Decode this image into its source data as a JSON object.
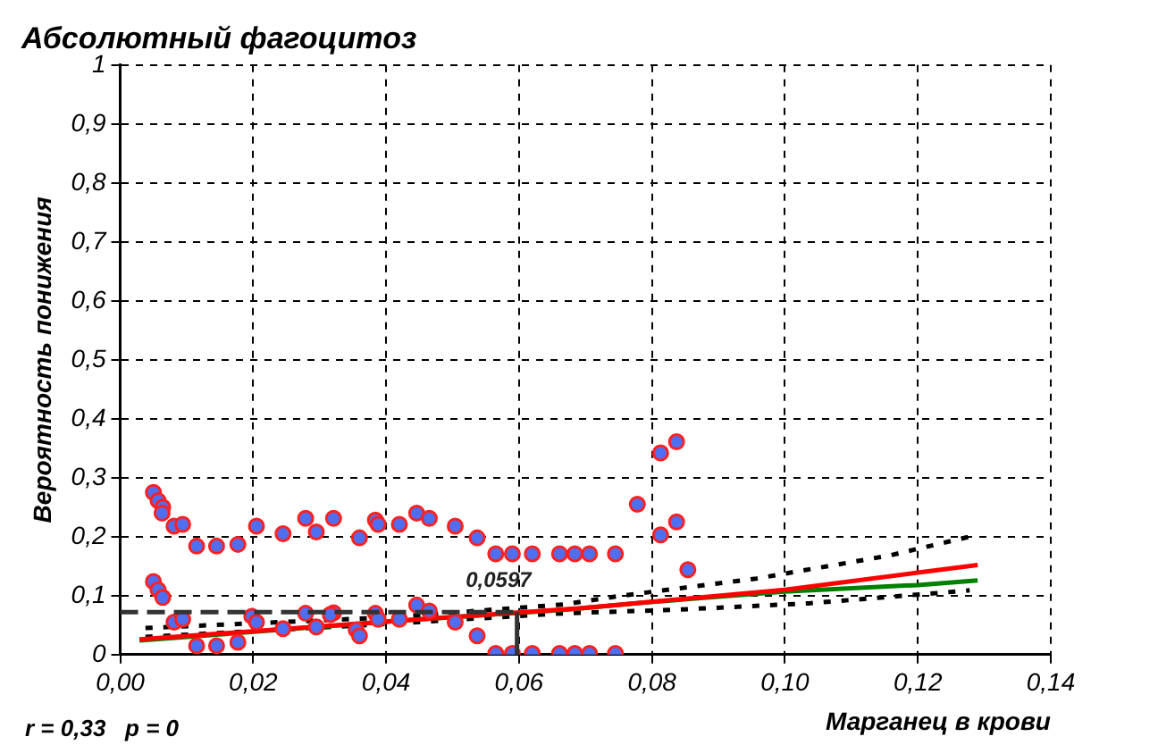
{
  "chart_data": {
    "type": "scatter",
    "title": "Абсолютный фагоцитоз",
    "xlabel": "Марганец в крови",
    "ylabel": "Вероятность понижения",
    "annotations": [
      "r = 0,33   p = 0"
    ],
    "xlim": [
      0,
      0.14
    ],
    "xticks": [
      {
        "value": 0,
        "label": "0,00"
      },
      {
        "value": 0.02,
        "label": "0,02"
      },
      {
        "value": 0.04,
        "label": "0,04"
      },
      {
        "value": 0.06,
        "label": "0,06"
      },
      {
        "value": 0.08,
        "label": "0,08"
      },
      {
        "value": 0.1,
        "label": "0,10"
      },
      {
        "value": 0.12,
        "label": "0,12"
      },
      {
        "value": 0.14,
        "label": "0,14"
      }
    ],
    "ylim": [
      0,
      1
    ],
    "yticks": [
      {
        "value": 1,
        "label": "1"
      },
      {
        "value": 0.9,
        "label": "0,9"
      },
      {
        "value": 0.8,
        "label": "0,8"
      },
      {
        "value": 0.7,
        "label": "0,7"
      },
      {
        "value": 0.6,
        "label": "0,6"
      },
      {
        "value": 0.5,
        "label": "0,5"
      },
      {
        "value": 0.4,
        "label": "0,4"
      },
      {
        "value": 0.3,
        "label": "0,3"
      },
      {
        "value": 0.2,
        "label": "0,2"
      },
      {
        "value": 0.1,
        "label": "0,1"
      },
      0
    ],
    "grid": true,
    "legend": false,
    "ref_lines": [
      {
        "axis": "y",
        "value": 0.072,
        "label": null,
        "color": "#333333",
        "line_style": "dashed"
      },
      {
        "axis": "x",
        "value": 0.0597,
        "label": "0,0597",
        "color": "#333333",
        "line_style": "solid"
      }
    ],
    "series": [
      {
        "type": "scatter",
        "color": "#4f6ef0",
        "marker": "circle",
        "x": [
          0.005,
          0.0057,
          0.0064,
          0.0063,
          0.0081,
          0.0094,
          0.0115,
          0.0145,
          0.0177,
          0.0205,
          0.0245,
          0.0279,
          0.0295,
          0.0321,
          0.036,
          0.0384,
          0.0388,
          0.042,
          0.0446,
          0.0465,
          0.0504,
          0.0537,
          0.0565,
          0.059,
          0.062,
          0.0661,
          0.0684,
          0.0706,
          0.0745,
          0.0778,
          0.0813,
          0.0837,
          0.0813,
          0.0837,
          0.0854,
          0.005,
          0.0057,
          0.0064,
          0.0081,
          0.0094,
          0.0115,
          0.0145,
          0.0177,
          0.0198,
          0.0205,
          0.0245,
          0.0279,
          0.0295,
          0.0321,
          0.0316,
          0.0355,
          0.036,
          0.0384,
          0.0388,
          0.042,
          0.0446,
          0.0465,
          0.0504,
          0.0537,
          0.0565,
          0.059,
          0.062,
          0.0661,
          0.0684,
          0.0706,
          0.0745
        ],
        "values": [
          0.275,
          0.261,
          0.25,
          0.24,
          0.218,
          0.221,
          0.184,
          0.184,
          0.187,
          0.218,
          0.205,
          0.231,
          0.208,
          0.231,
          0.198,
          0.228,
          0.221,
          0.221,
          0.24,
          0.231,
          0.218,
          0.198,
          0.171,
          0.171,
          0.171,
          0.171,
          0.171,
          0.171,
          0.171,
          0.255,
          0.342,
          0.361,
          0.203,
          0.225,
          0.144,
          0.124,
          0.11,
          0.097,
          0.055,
          0.06,
          0.015,
          0.015,
          0.021,
          0.065,
          0.055,
          0.044,
          0.07,
          0.047,
          0.071,
          0.068,
          0.042,
          0.032,
          0.07,
          0.06,
          0.06,
          0.084,
          0.074,
          0.055,
          0.032,
          0.002,
          0.002,
          0.002,
          0.002,
          0.002,
          0.002,
          0.002
        ]
      },
      {
        "type": "line",
        "color": "#ff0000",
        "marker": "none",
        "line_style": "solid",
        "x": [
          0.0029,
          0.0427,
          0.0695,
          0.1,
          0.12,
          0.129
        ],
        "values": [
          0.026,
          0.058,
          0.079,
          0.11,
          0.139,
          0.152
        ]
      },
      {
        "type": "line",
        "color": "#008000",
        "marker": "none",
        "line_style": "solid",
        "x": [
          0.0029,
          0.0427,
          0.0667,
          0.0797,
          0.1,
          0.12,
          0.129
        ],
        "values": [
          0.024,
          0.058,
          0.076,
          0.089,
          0.107,
          0.118,
          0.126
        ]
      },
      {
        "type": "line",
        "color": "#000000",
        "marker": "none",
        "line_style": "dotted",
        "x": [
          0.0038,
          0.04,
          0.0667,
          0.0755,
          0.0957,
          0.1157,
          0.1278
        ],
        "values": [
          0.045,
          0.063,
          0.085,
          0.1,
          0.129,
          0.168,
          0.2
        ]
      },
      {
        "type": "line",
        "color": "#000000",
        "marker": "none",
        "line_style": "dotted",
        "x": [
          0.0038,
          0.04,
          0.0667,
          0.0834,
          0.1037,
          0.1236,
          0.1278
        ],
        "values": [
          0.03,
          0.052,
          0.07,
          0.076,
          0.087,
          0.105,
          0.109
        ]
      }
    ]
  }
}
